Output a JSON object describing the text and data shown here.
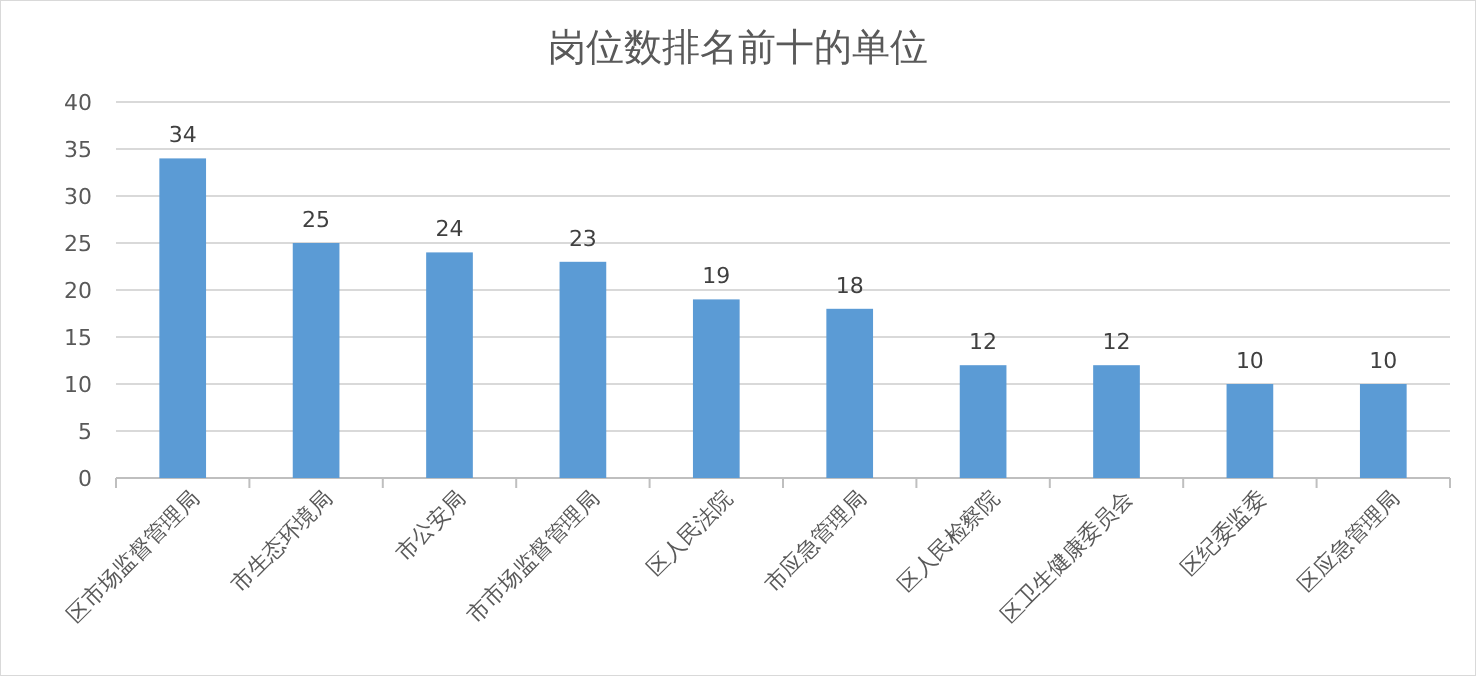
{
  "chart_data": {
    "type": "bar",
    "title": "岗位数排名前十的单位",
    "categories": [
      "区市场监督管理局",
      "市生态环境局",
      "市公安局",
      "市市场监督管理局",
      "区人民法院",
      "市应急管理局",
      "区人民检察院",
      "区卫生健康委员会",
      "区纪委监委",
      "区应急管理局"
    ],
    "values": [
      34,
      25,
      24,
      23,
      19,
      18,
      12,
      12,
      10,
      10
    ],
    "color": "#5b9bd5",
    "ylim": [
      0,
      40
    ],
    "yticks": [
      0,
      5,
      10,
      15,
      20,
      25,
      30,
      35,
      40
    ],
    "grid": "y",
    "data_labels": true
  }
}
